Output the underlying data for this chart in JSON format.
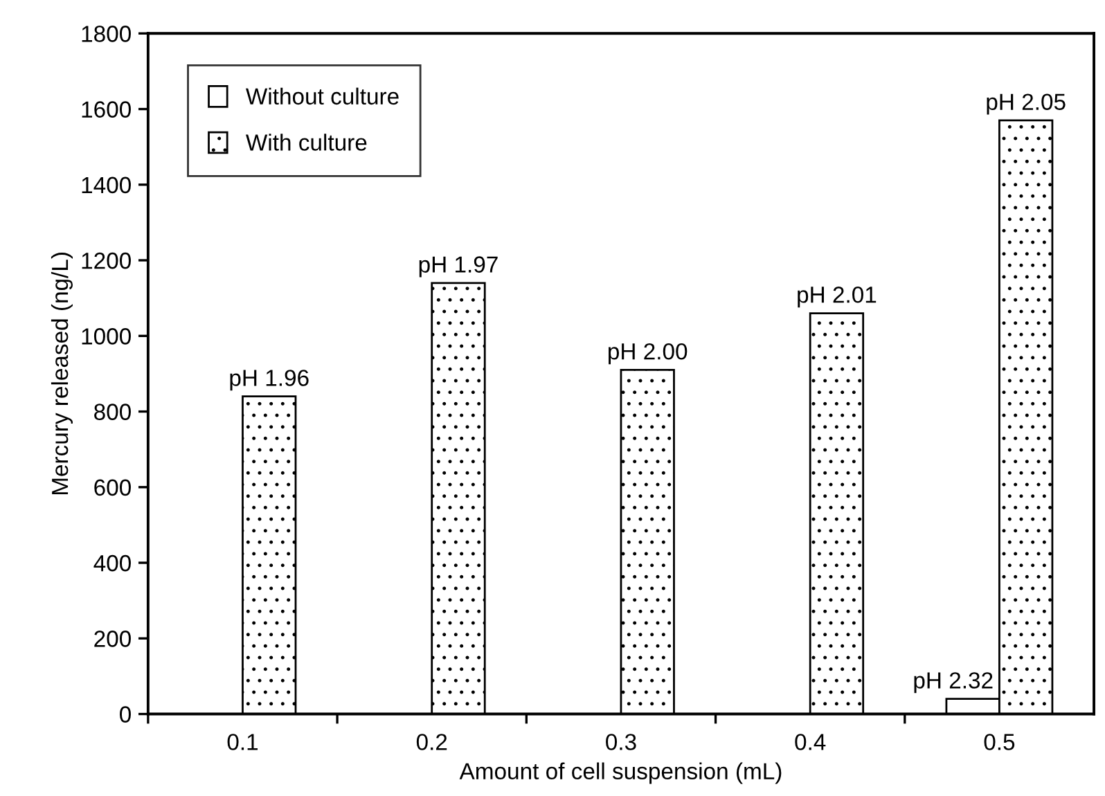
{
  "chart_data": {
    "type": "bar",
    "xlabel": "Amount of cell suspension (mL)",
    "ylabel": "Mercury released (ng/L)",
    "categories": [
      "0.1",
      "0.2",
      "0.3",
      "0.4",
      "0.5"
    ],
    "series": [
      {
        "name": "Without culture",
        "color": "#ffffff",
        "values": [
          null,
          null,
          null,
          null,
          40
        ],
        "value_labels": [
          null,
          null,
          null,
          null,
          "pH 2.32"
        ]
      },
      {
        "name": "With culture",
        "color": "#000000",
        "values": [
          840,
          1140,
          910,
          1060,
          1570
        ],
        "value_labels": [
          "pH 1.96",
          "pH 1.97",
          "pH 2.00",
          "pH 2.01",
          "pH 2.05"
        ]
      }
    ],
    "ylim": [
      0,
      1800
    ],
    "yticks": [
      0,
      200,
      400,
      600,
      800,
      1000,
      1200,
      1400,
      1600,
      1800
    ],
    "grid": false,
    "legend": "top left"
  }
}
